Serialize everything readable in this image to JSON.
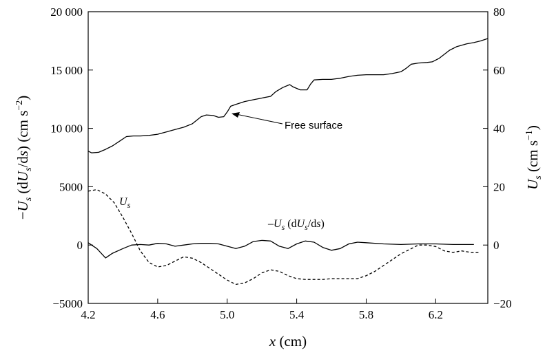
{
  "chart_data": {
    "type": "line",
    "xlabel": {
      "main": "x",
      "unit": " (cm)"
    },
    "ylabel_left": {
      "minus": "−",
      "U": "U",
      "sub": "s",
      "mid": " (d",
      "U2": "U",
      "sub2": "s",
      "slash": "/d",
      "s": "s",
      "close": ")",
      "unit": " (cm s",
      "exp": "−2",
      "end": ")"
    },
    "ylabel_right": {
      "U": "U",
      "sub": "s",
      "unit": " (cm s",
      "exp": "−1",
      "end": ")"
    },
    "xlim": [
      4.2,
      6.5
    ],
    "ylim_left": [
      -5000,
      20000
    ],
    "ylim_right": [
      -20,
      80
    ],
    "xticks": [
      4.2,
      4.6,
      5.0,
      5.4,
      5.8,
      6.2
    ],
    "xtick_labels": [
      "4.2",
      "4.6",
      "5.0",
      "5.4",
      "5.8",
      "6.2"
    ],
    "yticks_left": [
      -5000,
      0,
      5000,
      10000,
      15000,
      20000
    ],
    "ytick_labels_left": [
      "−5000",
      "0",
      "5000",
      "10 000",
      "15 000",
      "20 000"
    ],
    "yticks_right": [
      -20,
      0,
      20,
      40,
      60,
      80
    ],
    "ytick_labels_right": [
      "−20",
      "0",
      "20",
      "40",
      "60",
      "80"
    ],
    "grid": false,
    "legend": "none",
    "series": [
      {
        "key": "free_surface",
        "axis": "left",
        "style": "solid",
        "x": [
          4.2,
          4.22,
          4.26,
          4.3,
          4.34,
          4.38,
          4.42,
          4.46,
          4.5,
          4.55,
          4.6,
          4.65,
          4.7,
          4.75,
          4.8,
          4.85,
          4.88,
          4.92,
          4.95,
          4.98,
          5.0,
          5.02,
          5.05,
          5.1,
          5.15,
          5.2,
          5.25,
          5.28,
          5.32,
          5.36,
          5.38,
          5.42,
          5.46,
          5.48,
          5.5,
          5.55,
          5.6,
          5.65,
          5.7,
          5.75,
          5.8,
          5.85,
          5.9,
          5.95,
          6.0,
          6.03,
          6.06,
          6.1,
          6.15,
          6.18,
          6.22,
          6.28,
          6.32,
          6.38,
          6.42,
          6.46,
          6.5
        ],
        "y": [
          8050,
          7900,
          7950,
          8200,
          8500,
          8900,
          9300,
          9350,
          9350,
          9400,
          9500,
          9700,
          9900,
          10100,
          10400,
          11000,
          11150,
          11100,
          10950,
          11000,
          11400,
          11900,
          12050,
          12300,
          12450,
          12600,
          12750,
          13150,
          13500,
          13750,
          13550,
          13300,
          13300,
          13800,
          14150,
          14200,
          14200,
          14300,
          14450,
          14550,
          14600,
          14600,
          14600,
          14700,
          14850,
          15150,
          15500,
          15600,
          15650,
          15700,
          16000,
          16700,
          17000,
          17250,
          17350,
          17500,
          17700
        ]
      },
      {
        "key": "Us",
        "axis": "right",
        "style": "dashed",
        "x": [
          4.2,
          4.25,
          4.3,
          4.35,
          4.4,
          4.45,
          4.5,
          4.55,
          4.6,
          4.65,
          4.7,
          4.75,
          4.8,
          4.85,
          4.9,
          4.95,
          5.0,
          5.05,
          5.1,
          5.15,
          5.2,
          5.25,
          5.3,
          5.35,
          5.4,
          5.45,
          5.5,
          5.55,
          5.6,
          5.65,
          5.7,
          5.75,
          5.8,
          5.85,
          5.9,
          5.95,
          6.0,
          6.05,
          6.1,
          6.15,
          6.2,
          6.25,
          6.3,
          6.35,
          6.4,
          6.45
        ],
        "y": [
          18.5,
          19.0,
          17.5,
          14.5,
          9.5,
          4.0,
          -2.0,
          -6.0,
          -7.5,
          -7.0,
          -5.5,
          -4.0,
          -4.5,
          -6.0,
          -8.0,
          -10.0,
          -12.0,
          -13.5,
          -13.0,
          -11.5,
          -9.5,
          -8.5,
          -9.0,
          -10.5,
          -11.5,
          -11.8,
          -11.8,
          -11.8,
          -11.5,
          -11.5,
          -11.5,
          -11.5,
          -10.5,
          -9.0,
          -7.0,
          -5.0,
          -3.0,
          -1.5,
          0.0,
          0.0,
          -0.5,
          -2.0,
          -2.5,
          -2.0,
          -2.5,
          -2.5
        ]
      },
      {
        "key": "Us_dUs_ds",
        "axis": "left",
        "style": "solid",
        "x": [
          4.2,
          4.25,
          4.3,
          4.34,
          4.4,
          4.45,
          4.5,
          4.55,
          4.6,
          4.65,
          4.7,
          4.75,
          4.8,
          4.85,
          4.9,
          4.95,
          5.0,
          5.05,
          5.1,
          5.15,
          5.2,
          5.25,
          5.3,
          5.35,
          5.4,
          5.45,
          5.5,
          5.55,
          5.6,
          5.65,
          5.7,
          5.75,
          5.8,
          5.9,
          6.0,
          6.1,
          6.2,
          6.3,
          6.42
        ],
        "y": [
          200,
          -300,
          -1100,
          -700,
          -300,
          0,
          50,
          0,
          150,
          100,
          -100,
          0,
          100,
          150,
          150,
          100,
          -100,
          -300,
          -100,
          300,
          400,
          350,
          -100,
          -300,
          100,
          350,
          250,
          -200,
          -450,
          -300,
          100,
          250,
          200,
          100,
          50,
          100,
          100,
          50,
          50
        ]
      }
    ],
    "annotations": {
      "free_surface_label": "Free surface",
      "us_label": {
        "U": "U",
        "sub": "s"
      },
      "deriv_label": {
        "minus": "–",
        "U": "U",
        "sub": "s",
        "mid": " (d",
        "U2": "U",
        "sub2": "s",
        "slash": "/d",
        "s": "s",
        "close": ")"
      }
    },
    "colors": {
      "line": "#000000",
      "background": "#ffffff"
    }
  }
}
